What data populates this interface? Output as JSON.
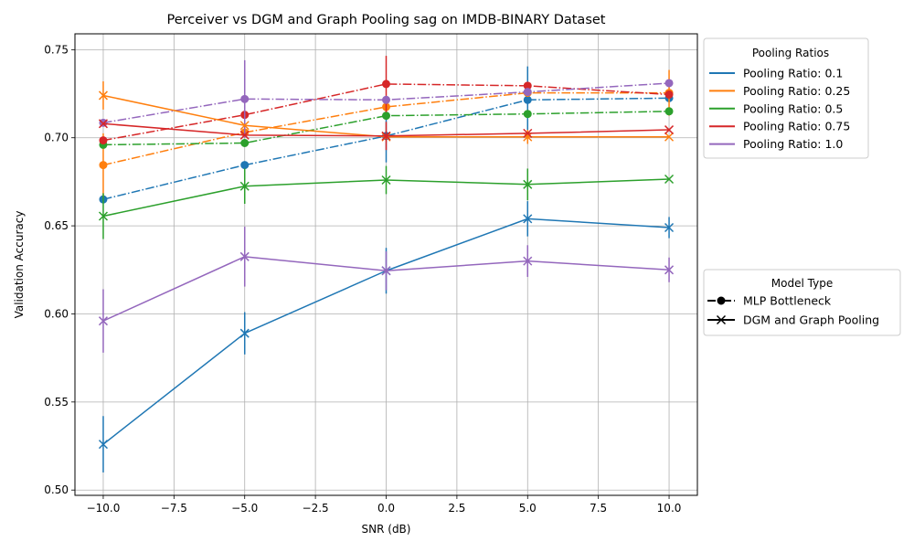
{
  "chart_data": {
    "type": "line",
    "title": "Perceiver vs DGM and Graph Pooling sag on IMDB-BINARY Dataset",
    "xlabel": "SNR (dB)",
    "ylabel": "Validation Accuracy",
    "x": [
      -10,
      -5,
      0,
      5,
      10
    ],
    "xlim": [
      -11.0,
      11.0
    ],
    "ylim": [
      0.497,
      0.759
    ],
    "xticks": [
      -10,
      -7.5,
      -5,
      -2.5,
      0,
      2.5,
      5,
      7.5,
      10
    ],
    "xtick_labels": [
      "−10.0",
      "−7.5",
      "−5.0",
      "−2.5",
      "0.0",
      "2.5",
      "5.0",
      "7.5",
      "10.0"
    ],
    "yticks": [
      0.5,
      0.55,
      0.6,
      0.65,
      0.7,
      0.75
    ],
    "ytick_labels": [
      "0.50",
      "0.55",
      "0.60",
      "0.65",
      "0.70",
      "0.75"
    ],
    "grid": true,
    "pooling_legend": {
      "title": "Pooling Ratios",
      "placement": "outside right, top",
      "entries": [
        {
          "label": "Pooling Ratio: 0.1",
          "color": "#1f77b4"
        },
        {
          "label": "Pooling Ratio: 0.25",
          "color": "#ff7f0e"
        },
        {
          "label": "Pooling Ratio: 0.5",
          "color": "#2ca02c"
        },
        {
          "label": "Pooling Ratio: 0.75",
          "color": "#d62728"
        },
        {
          "label": "Pooling Ratio: 1.0",
          "color": "#9467bd"
        }
      ]
    },
    "model_legend": {
      "title": "Model Type",
      "placement": "outside right, middle",
      "entries": [
        {
          "label": "MLP Bottleneck",
          "marker": "circle",
          "linestyle": "dashdot"
        },
        {
          "label": "DGM and Graph Pooling",
          "marker": "x",
          "linestyle": "solid"
        }
      ]
    },
    "series": [
      {
        "model": "MLP Bottleneck",
        "pooling": "0.1",
        "color": "#1f77b4",
        "marker": "circle",
        "linestyle": "dashdot",
        "y": [
          0.665,
          0.6845,
          0.701,
          0.7215,
          0.7225
        ],
        "err": [
          0.0,
          0.0,
          0.015,
          0.019,
          0.0
        ]
      },
      {
        "model": "MLP Bottleneck",
        "pooling": "0.25",
        "color": "#ff7f0e",
        "marker": "circle",
        "linestyle": "dashdot",
        "y": [
          0.6845,
          0.703,
          0.7175,
          0.7255,
          0.7255
        ],
        "err": [
          0.018,
          0.0,
          0.0,
          0.0,
          0.013
        ]
      },
      {
        "model": "MLP Bottleneck",
        "pooling": "0.5",
        "color": "#2ca02c",
        "marker": "circle",
        "linestyle": "dashdot",
        "y": [
          0.696,
          0.697,
          0.7125,
          0.7135,
          0.715
        ],
        "err": [
          0.0,
          0.0,
          0.0,
          0.0,
          0.0
        ]
      },
      {
        "model": "MLP Bottleneck",
        "pooling": "0.75",
        "color": "#d62728",
        "marker": "circle",
        "linestyle": "dashdot",
        "y": [
          0.6985,
          0.713,
          0.7305,
          0.7295,
          0.7245
        ],
        "err": [
          0.0,
          0.0,
          0.016,
          0.0,
          0.0
        ]
      },
      {
        "model": "MLP Bottleneck",
        "pooling": "1.0",
        "color": "#9467bd",
        "marker": "circle",
        "linestyle": "dashdot",
        "y": [
          0.7085,
          0.722,
          0.7215,
          0.726,
          0.731
        ],
        "err": [
          0.0,
          0.022,
          0.0,
          0.0,
          0.0
        ]
      },
      {
        "model": "DGM and Graph Pooling",
        "pooling": "0.1",
        "color": "#1f77b4",
        "marker": "x",
        "linestyle": "solid",
        "y": [
          0.526,
          0.589,
          0.6245,
          0.654,
          0.649
        ],
        "err": [
          0.016,
          0.012,
          0.013,
          0.01,
          0.006
        ]
      },
      {
        "model": "DGM and Graph Pooling",
        "pooling": "0.25",
        "color": "#ff7f0e",
        "marker": "x",
        "linestyle": "solid",
        "y": [
          0.724,
          0.707,
          0.7005,
          0.7005,
          0.7005
        ],
        "err": [
          0.008,
          0.0,
          0.0,
          0.004,
          0.0
        ]
      },
      {
        "model": "DGM and Graph Pooling",
        "pooling": "0.5",
        "color": "#2ca02c",
        "marker": "x",
        "linestyle": "solid",
        "y": [
          0.6555,
          0.6725,
          0.676,
          0.6735,
          0.6765
        ],
        "err": [
          0.013,
          0.01,
          0.008,
          0.009,
          0.0
        ]
      },
      {
        "model": "DGM and Graph Pooling",
        "pooling": "0.75",
        "color": "#d62728",
        "marker": "x",
        "linestyle": "solid",
        "y": [
          0.708,
          0.7015,
          0.701,
          0.7025,
          0.7045
        ],
        "err": [
          0.0,
          0.0,
          0.008,
          0.0,
          0.0
        ]
      },
      {
        "model": "DGM and Graph Pooling",
        "pooling": "1.0",
        "color": "#9467bd",
        "marker": "x",
        "linestyle": "solid",
        "y": [
          0.596,
          0.6325,
          0.6245,
          0.63,
          0.625
        ],
        "err": [
          0.018,
          0.017,
          0.011,
          0.009,
          0.007
        ]
      }
    ]
  }
}
